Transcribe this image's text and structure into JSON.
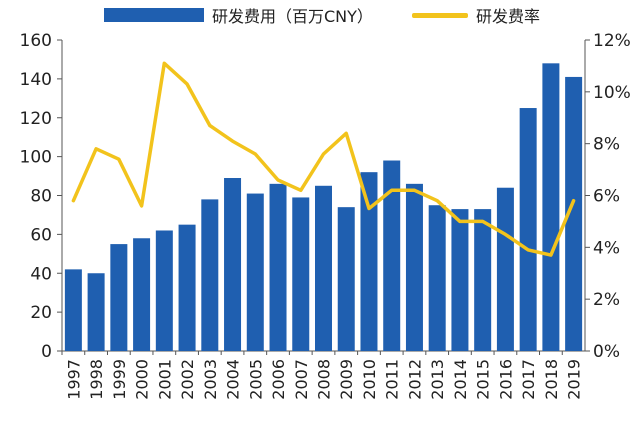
{
  "chart_data": {
    "type": "bar",
    "categories": [
      "1997",
      "1998",
      "1999",
      "2000",
      "2001",
      "2002",
      "2003",
      "2004",
      "2005",
      "2006",
      "2007",
      "2008",
      "2009",
      "2010",
      "2011",
      "2012",
      "2013",
      "2014",
      "2015",
      "2016",
      "2017",
      "2018",
      "2019"
    ],
    "series": [
      {
        "name": "研发费用（百万CNY）",
        "type": "bar",
        "axis": "left",
        "color": "#1f5fb0",
        "values": [
          42,
          40,
          55,
          58,
          62,
          65,
          78,
          89,
          81,
          86,
          79,
          85,
          74,
          92,
          98,
          86,
          75,
          73,
          73,
          84,
          125,
          148,
          141
        ]
      },
      {
        "name": "研发费率",
        "type": "line",
        "axis": "right",
        "color": "#f2c31c",
        "values": [
          5.8,
          7.8,
          7.4,
          5.6,
          11.1,
          10.3,
          8.7,
          8.1,
          7.6,
          6.6,
          6.2,
          7.6,
          8.4,
          5.5,
          6.2,
          6.2,
          5.8,
          5.0,
          5.0,
          4.5,
          3.9,
          3.7,
          5.8
        ]
      }
    ],
    "ylim_left": [
      0,
      160
    ],
    "yticks_left": [
      "0",
      "20",
      "40",
      "60",
      "80",
      "100",
      "120",
      "140",
      "160"
    ],
    "ylim_right": [
      0,
      12
    ],
    "yticks_right": [
      "0%",
      "2%",
      "4%",
      "6%",
      "8%",
      "10%",
      "12%"
    ],
    "grid": false,
    "legend_position": "top"
  }
}
